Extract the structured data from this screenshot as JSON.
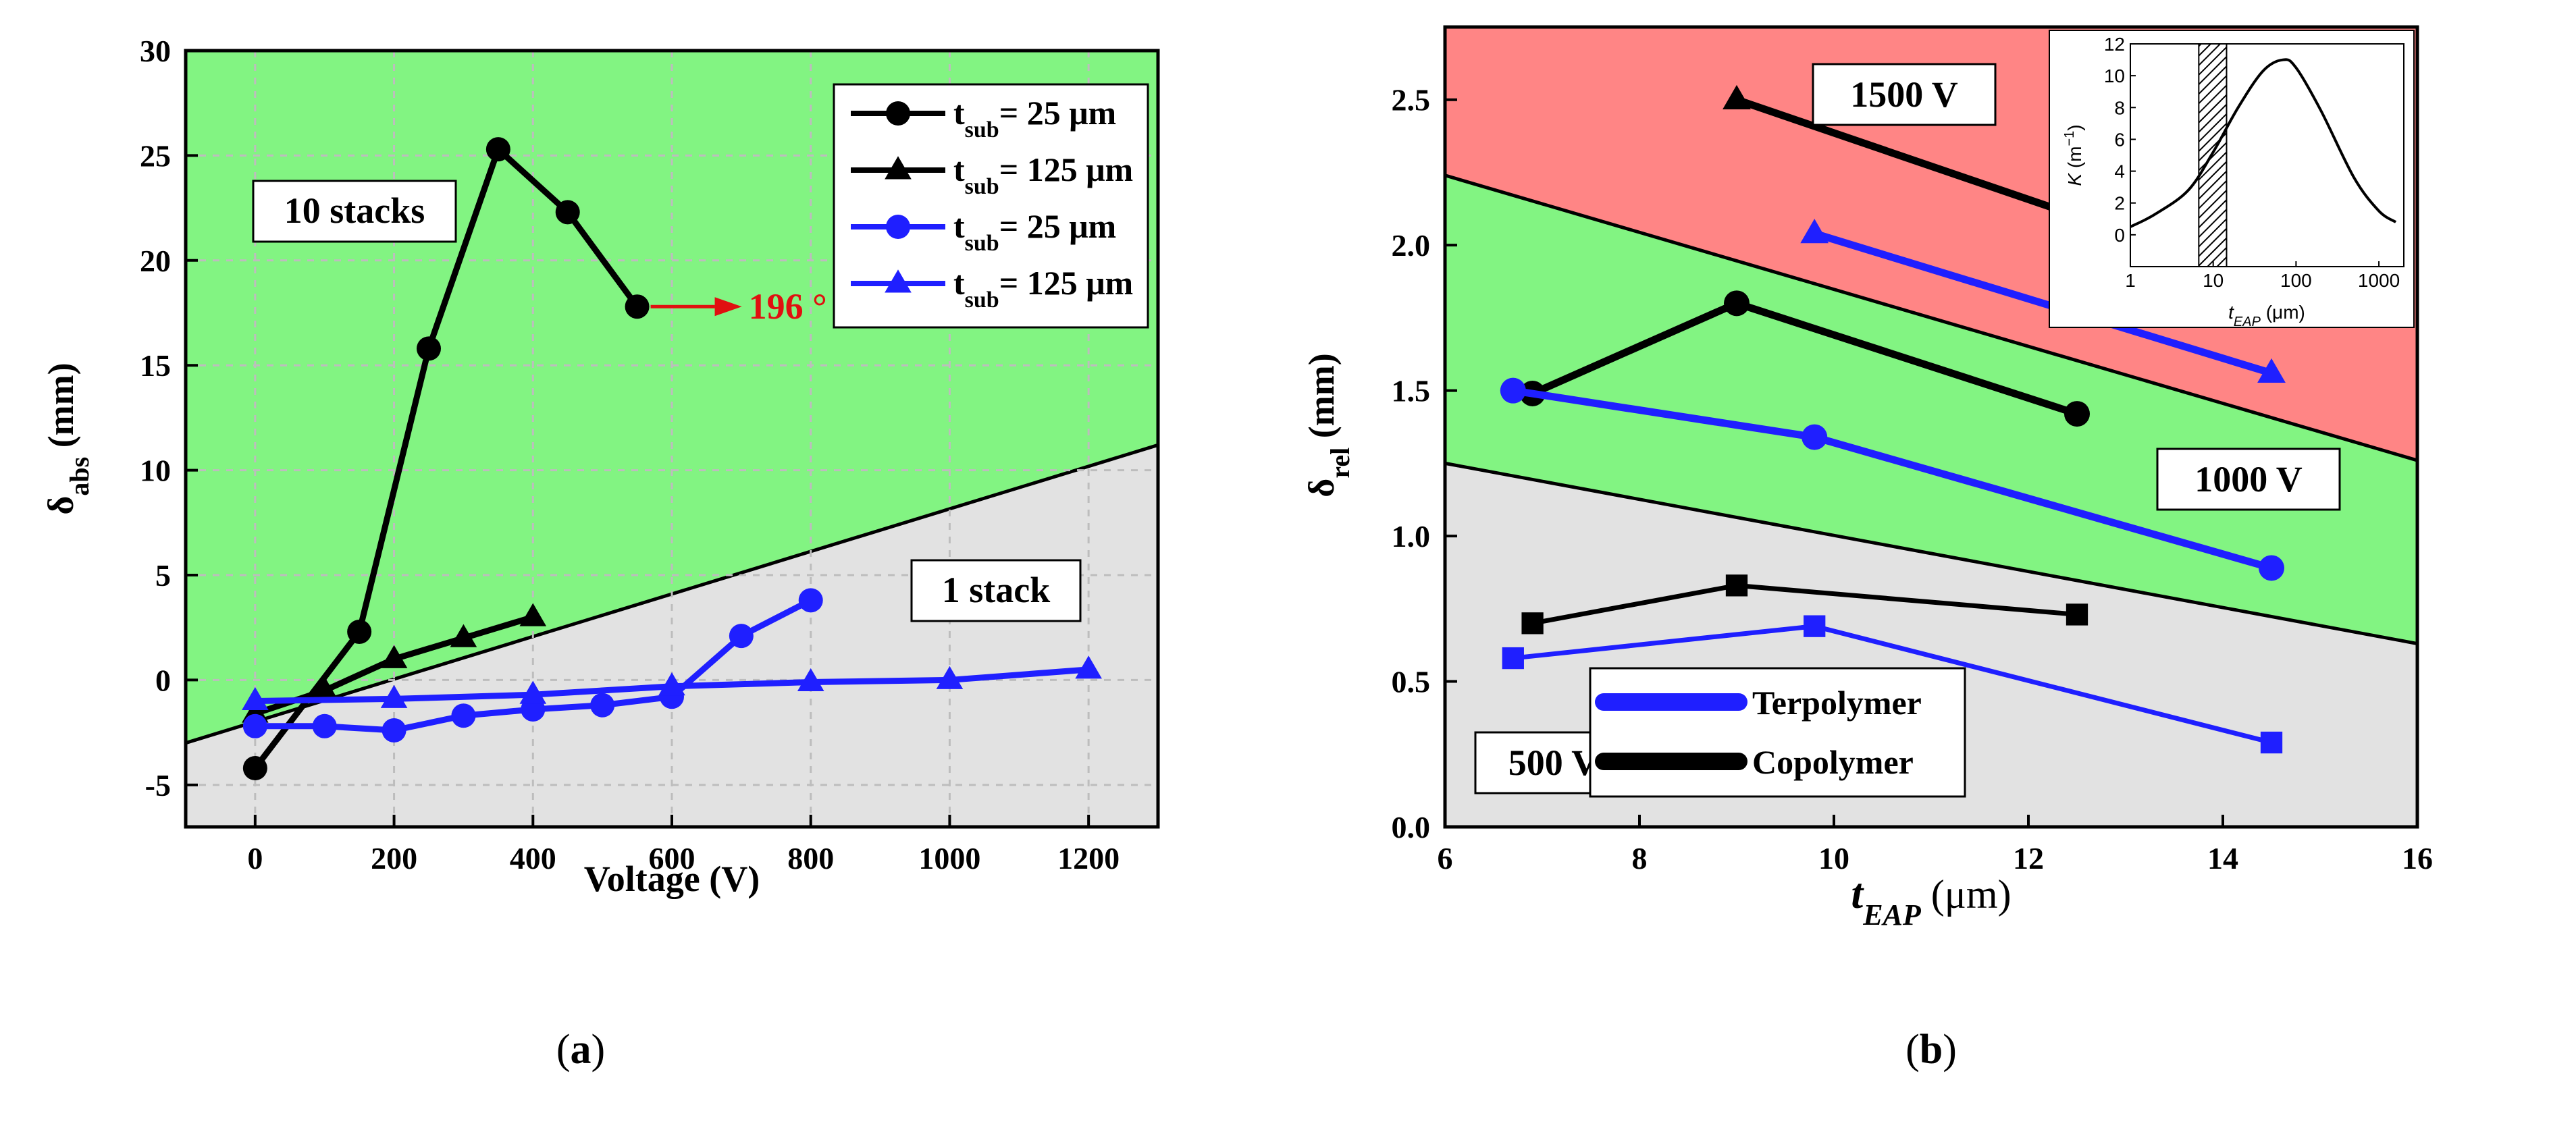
{
  "colors": {
    "black_series": "#000000",
    "blue_series": "#1f1fff",
    "green_region": "#82f482",
    "gray_region": "#e2e2e2",
    "red_region": "#ff8585",
    "annotation_red": "#e01010"
  },
  "chart_data": [
    {
      "id": "a",
      "type": "line",
      "panel_label": "(a)",
      "xlabel": "Voltage (V)",
      "ylabel": "δabs (mm)",
      "xlim": [
        -100,
        1300
      ],
      "ylim": [
        -7,
        30
      ],
      "xticks": [
        "0",
        "200",
        "400",
        "600",
        "800",
        "1000",
        "1200"
      ],
      "yticks": [
        "-5",
        "0",
        "5",
        "10",
        "15",
        "20",
        "25",
        "30"
      ],
      "grid": true,
      "legend_position": "top-right",
      "regions": [
        {
          "label": "10 stacks",
          "color": "green",
          "area": "above line"
        },
        {
          "label": "1 stack",
          "color": "gray",
          "area": "below line"
        }
      ],
      "boundary_line": {
        "x": [
          -100,
          1300
        ],
        "y": [
          -3,
          11.2
        ]
      },
      "annotation": {
        "text": "196 °",
        "x": 550,
        "y": 17.8
      },
      "series": [
        {
          "name": "tsub= 25 μm",
          "color": "black",
          "marker": "circle",
          "x": [
            0,
            150,
            250,
            350,
            450,
            550
          ],
          "y": [
            -4.2,
            2.3,
            15.8,
            25.3,
            22.3,
            17.8
          ]
        },
        {
          "name": "tsub= 125 μm",
          "color": "black",
          "marker": "triangle",
          "x": [
            0,
            100,
            200,
            300,
            400
          ],
          "y": [
            -1.6,
            -0.5,
            1.0,
            2.0,
            3.0
          ]
        },
        {
          "name": "tsub= 25 μm",
          "color": "blue",
          "marker": "circle",
          "x": [
            0,
            100,
            200,
            300,
            400,
            500,
            600,
            700,
            800
          ],
          "y": [
            -2.2,
            -2.2,
            -2.4,
            -1.7,
            -1.4,
            -1.2,
            -0.8,
            2.1,
            3.8
          ]
        },
        {
          "name": "tsub= 125 μm",
          "color": "blue",
          "marker": "triangle",
          "x": [
            0,
            200,
            400,
            600,
            800,
            1000,
            1200
          ],
          "y": [
            -1.0,
            -0.9,
            -0.7,
            -0.3,
            -0.1,
            0.0,
            0.5
          ]
        }
      ],
      "legend_entries": [
        {
          "prefix": "t",
          "sub": "sub",
          "suffix": "= 25 μm",
          "color": "black",
          "marker": "circle"
        },
        {
          "prefix": "t",
          "sub": "sub",
          "suffix": "= 125 μm",
          "color": "black",
          "marker": "triangle"
        },
        {
          "prefix": "t",
          "sub": "sub",
          "suffix": "= 25 μm",
          "color": "blue",
          "marker": "circle"
        },
        {
          "prefix": "t",
          "sub": "sub",
          "suffix": "= 125 μm",
          "color": "blue",
          "marker": "triangle"
        }
      ]
    },
    {
      "id": "b",
      "type": "line",
      "panel_label": "(b)",
      "xlabel": "tEAP (μm)",
      "ylabel": "δrel (mm)",
      "xlim": [
        6,
        16
      ],
      "ylim": [
        0.0,
        2.75
      ],
      "xticks": [
        "6",
        "8",
        "10",
        "12",
        "14",
        "16"
      ],
      "yticks": [
        "0.0",
        "0.5",
        "1.0",
        "1.5",
        "2.0",
        "2.5"
      ],
      "grid": false,
      "legend_position": "bottom-center",
      "regions": [
        {
          "label": "1500 V",
          "color": "red"
        },
        {
          "label": "1000 V",
          "color": "green"
        },
        {
          "label": "500 V",
          "color": "gray"
        }
      ],
      "boundary_lines": [
        {
          "x": [
            6,
            16
          ],
          "y": [
            2.24,
            1.26
          ]
        },
        {
          "x": [
            6,
            16
          ],
          "y": [
            1.25,
            0.63
          ]
        }
      ],
      "series": [
        {
          "name": "Copolymer",
          "group": "1500 V",
          "color": "black",
          "marker": "triangle",
          "x": [
            9.0,
            12.5
          ],
          "y": [
            2.5,
            2.1
          ]
        },
        {
          "name": "Terpolymer",
          "group": "1500 V",
          "color": "blue",
          "marker": "triangle",
          "x": [
            9.8,
            14.5
          ],
          "y": [
            2.04,
            1.56
          ]
        },
        {
          "name": "Copolymer",
          "group": "1000 V",
          "color": "black",
          "marker": "circle",
          "x": [
            6.9,
            9.0,
            12.5
          ],
          "y": [
            1.49,
            1.8,
            1.42
          ]
        },
        {
          "name": "Terpolymer",
          "group": "1000 V",
          "color": "blue",
          "marker": "circle",
          "x": [
            6.7,
            9.8,
            14.5
          ],
          "y": [
            1.5,
            1.34,
            0.89
          ]
        },
        {
          "name": "Copolymer",
          "group": "500 V",
          "color": "black",
          "marker": "square",
          "x": [
            6.9,
            9.0,
            12.5
          ],
          "y": [
            0.7,
            0.83,
            0.73
          ]
        },
        {
          "name": "Terpolymer",
          "group": "500 V",
          "color": "blue",
          "marker": "square",
          "x": [
            6.7,
            9.8,
            14.5
          ],
          "y": [
            0.58,
            0.69,
            0.29
          ]
        }
      ],
      "legend_entries": [
        {
          "label": "Terpolymer",
          "color": "blue"
        },
        {
          "label": "Copolymer",
          "color": "black"
        }
      ],
      "inset": {
        "type": "line",
        "xlabel": "tEAP (μm)",
        "ylabel": "K (m−1)",
        "xscale": "log",
        "xlim": [
          1,
          2000
        ],
        "ylim": [
          -2,
          12
        ],
        "xticks": [
          "1",
          "10",
          "100",
          "1000"
        ],
        "yticks": [
          "0",
          "2",
          "4",
          "6",
          "8",
          "10",
          "12"
        ],
        "x": [
          1,
          2,
          5,
          10,
          20,
          40,
          70,
          100,
          200,
          500,
          1000,
          1600
        ],
        "y": [
          0.5,
          1.3,
          2.8,
          5.2,
          8.0,
          10.3,
          11.0,
          10.5,
          7.8,
          3.6,
          1.5,
          0.8
        ],
        "shaded_band": [
          6.7,
          14.5
        ]
      }
    }
  ]
}
